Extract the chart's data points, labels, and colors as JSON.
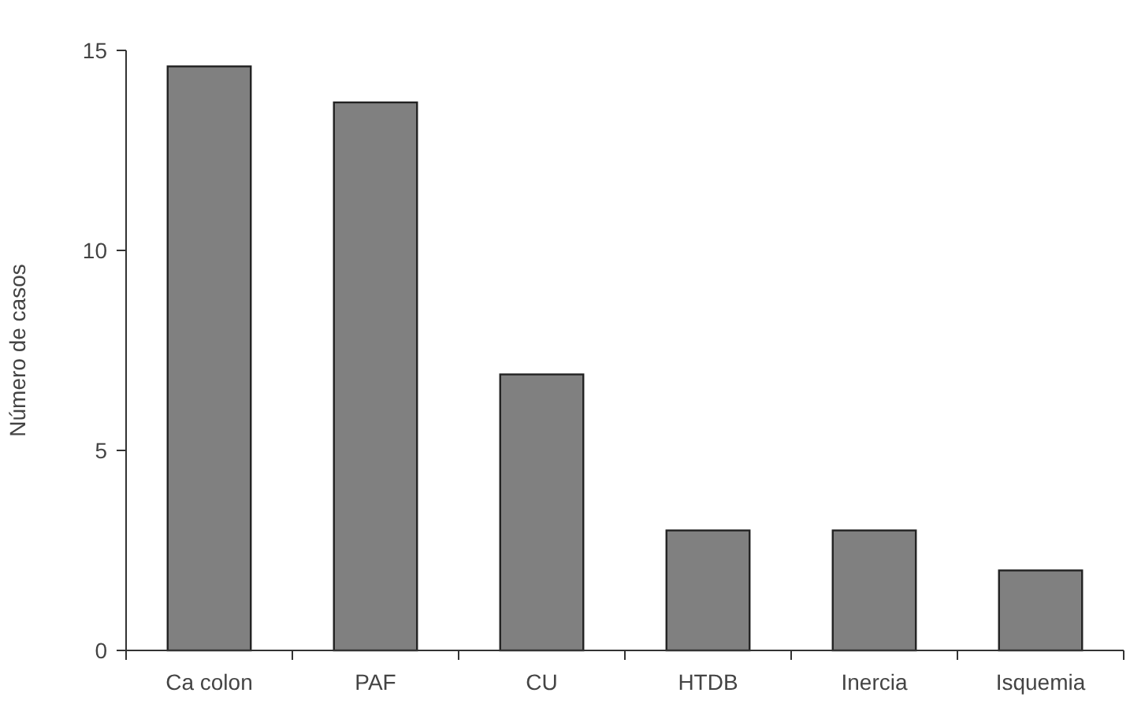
{
  "chart_data": {
    "type": "bar",
    "ylabel": "Número de casos",
    "categories": [
      "Ca colon",
      "PAF",
      "CU",
      "HTDB",
      "Inercia",
      "Isquemia"
    ],
    "values": [
      14.6,
      13.7,
      6.9,
      3,
      3,
      2
    ],
    "color": "#808080",
    "ylim": [
      0,
      15
    ],
    "yticks": [
      0,
      5,
      10,
      15
    ],
    "grid": false
  }
}
